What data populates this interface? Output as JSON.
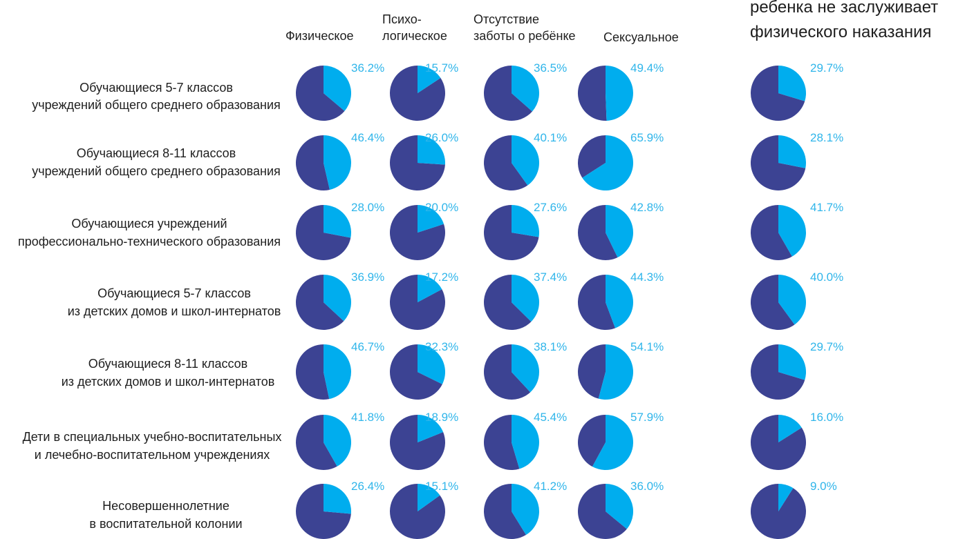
{
  "chart_data": {
    "type": "pie",
    "columns": [
      {
        "name_lines": [
          "Физическое"
        ]
      },
      {
        "name_lines": [
          "Психо-",
          "логическое"
        ]
      },
      {
        "name_lines": [
          "Отсутствие",
          "заботы о ребёнке"
        ]
      },
      {
        "name_lines": [
          "Сексуальное"
        ]
      },
      {
        "name_lines": [
          "ребенка не заслуживает",
          "физического наказания"
        ]
      }
    ],
    "rows": [
      {
        "label_lines": [
          "Обучающиеся 5-7 классов",
          "учреждений общего среднего образования"
        ],
        "values": [
          36.2,
          15.7,
          36.5,
          49.4,
          29.7
        ]
      },
      {
        "label_lines": [
          "Обучающиеся 8-11 классов",
          "учреждений общего среднего образования"
        ],
        "values": [
          46.4,
          26.0,
          40.1,
          65.9,
          28.1
        ]
      },
      {
        "label_lines": [
          "Обучающиеся учреждений",
          "профессионально-технического образования"
        ],
        "values": [
          28.0,
          20.0,
          27.6,
          42.8,
          41.7
        ]
      },
      {
        "label_lines": [
          "Обучающиеся 5-7 классов",
          "из детских домов и школ-интернатов"
        ],
        "values": [
          36.9,
          17.2,
          37.4,
          44.3,
          40.0
        ]
      },
      {
        "label_lines": [
          "Обучающиеся 8-11 классов",
          "из детских домов и школ-интернатов"
        ],
        "values": [
          46.7,
          32.3,
          38.1,
          54.1,
          29.7
        ]
      },
      {
        "label_lines": [
          "Дети в специальных учебно-воспитательных",
          "и лечебно-воспитательном учреждениях"
        ],
        "values": [
          41.8,
          18.9,
          45.4,
          57.9,
          16.0
        ]
      },
      {
        "label_lines": [
          "Несовершеннолетние",
          "в воспитательной колонии"
        ],
        "values": [
          26.4,
          15.1,
          41.2,
          36.0,
          9.0
        ]
      }
    ],
    "value_suffix": "%",
    "colors": {
      "share": "#00adee",
      "remainder": "#3c4393",
      "value_label": "#2fb5ea",
      "text": "#1e1e1e"
    }
  }
}
